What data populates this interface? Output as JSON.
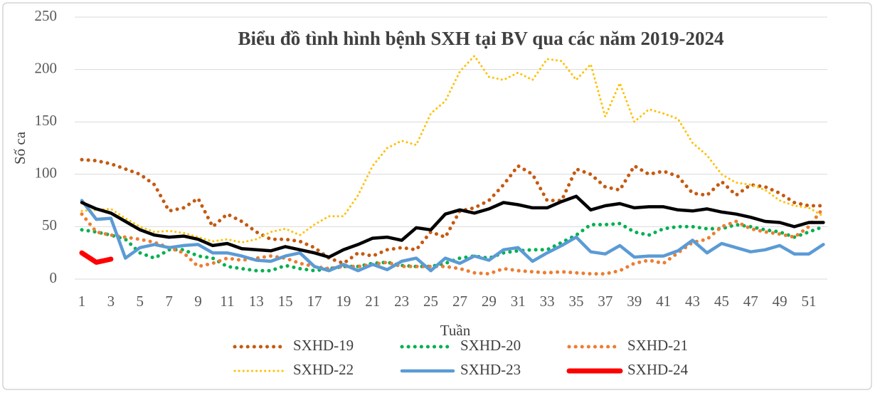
{
  "chart_data": {
    "type": "line",
    "title": "Biểu đồ tình hình bệnh SXH tại BV qua các năm 2019-2024",
    "x_label": "Tuần",
    "y_label": "Số ca",
    "categories": [
      1,
      null,
      3,
      null,
      5,
      null,
      7,
      null,
      9,
      null,
      11,
      null,
      13,
      null,
      15,
      null,
      17,
      null,
      19,
      null,
      21,
      null,
      23,
      null,
      25,
      null,
      27,
      null,
      29,
      null,
      31,
      null,
      33,
      null,
      35,
      null,
      37,
      null,
      39,
      null,
      41,
      null,
      43,
      null,
      45,
      null,
      47,
      null,
      49,
      null,
      51,
      null
    ],
    "ylim": [
      0,
      250
    ],
    "yticks": [
      0,
      50,
      100,
      150,
      200,
      250
    ],
    "grid": true,
    "legend": "bottom",
    "series": [
      {
        "name": "SXHD-19",
        "color": "#c55a11",
        "style": "dotted",
        "values": [
          114,
          113,
          110,
          105,
          100,
          90,
          65,
          68,
          77,
          50,
          62,
          55,
          45,
          38,
          38,
          36,
          30,
          20,
          15,
          25,
          22,
          28,
          30,
          28,
          45,
          40,
          65,
          68,
          75,
          90,
          108,
          100,
          75,
          75,
          105,
          100,
          88,
          85,
          108,
          100,
          103,
          98,
          82,
          80,
          93,
          80,
          90,
          88,
          82,
          73,
          70,
          70
        ]
      },
      {
        "name": "SXHD-20",
        "color": "#00b050",
        "style": "dotted",
        "values": [
          47,
          45,
          42,
          38,
          25,
          20,
          28,
          28,
          22,
          20,
          12,
          10,
          8,
          8,
          13,
          10,
          8,
          10,
          12,
          12,
          15,
          16,
          13,
          12,
          12,
          15,
          20,
          22,
          20,
          25,
          27,
          28,
          28,
          35,
          42,
          52,
          52,
          53,
          45,
          42,
          48,
          50,
          50,
          48,
          48,
          52,
          50,
          47,
          45,
          40,
          45,
          50
        ]
      },
      {
        "name": "SXHD-21",
        "color": "#ed7d31",
        "style": "dotted",
        "values": [
          62,
          45,
          42,
          40,
          38,
          35,
          30,
          25,
          12,
          15,
          20,
          18,
          20,
          22,
          20,
          15,
          12,
          10,
          12,
          12,
          14,
          16,
          12,
          12,
          12,
          12,
          10,
          6,
          5,
          10,
          8,
          7,
          6,
          7,
          6,
          5,
          5,
          8,
          15,
          18,
          15,
          25,
          35,
          38,
          50,
          55,
          48,
          45,
          43,
          40,
          50,
          68
        ]
      },
      {
        "name": "SXHD-22",
        "color": "#ffc000",
        "style": "dotted-thin",
        "values": [
          65,
          66,
          67,
          58,
          50,
          45,
          46,
          44,
          40,
          36,
          38,
          35,
          38,
          45,
          48,
          42,
          52,
          60,
          60,
          80,
          108,
          125,
          132,
          128,
          158,
          170,
          198,
          213,
          193,
          190,
          197,
          190,
          210,
          208,
          190,
          205,
          155,
          187,
          150,
          162,
          158,
          153,
          130,
          118,
          100,
          92,
          90,
          85,
          75,
          70,
          68,
          60
        ]
      },
      {
        "name": "SXHD-23",
        "color": "#5b9bd5",
        "style": "solid",
        "values": [
          75,
          57,
          58,
          20,
          30,
          33,
          30,
          32,
          33,
          25,
          25,
          22,
          18,
          17,
          22,
          25,
          12,
          8,
          14,
          8,
          14,
          9,
          17,
          20,
          8,
          20,
          15,
          22,
          18,
          28,
          30,
          17,
          25,
          32,
          40,
          26,
          24,
          32,
          21,
          22,
          22,
          27,
          37,
          25,
          34,
          30,
          26,
          28,
          32,
          24,
          24,
          33
        ]
      },
      {
        "name": "SXHD-24",
        "color": "#ff0000",
        "style": "solid-thick",
        "values": [
          25,
          16,
          19,
          null,
          null,
          null,
          null,
          null,
          null,
          null,
          null,
          null,
          null,
          null,
          null,
          null,
          null,
          null,
          null,
          null,
          null,
          null,
          null,
          null,
          null,
          null,
          null,
          null,
          null,
          null,
          null,
          null,
          null,
          null,
          null,
          null,
          null,
          null,
          null,
          null,
          null,
          null,
          null,
          null,
          null,
          null,
          null,
          null,
          null,
          null,
          null,
          null
        ]
      },
      {
        "color": "#000000",
        "style": "solid",
        "values": [
          73,
          67,
          63,
          55,
          47,
          42,
          40,
          41,
          38,
          32,
          34,
          29,
          28,
          27,
          31,
          28,
          25,
          21,
          28,
          33,
          39,
          40,
          37,
          49,
          47,
          62,
          66,
          63,
          67,
          73,
          71,
          68,
          68,
          74,
          79,
          66,
          70,
          72,
          68,
          69,
          69,
          66,
          65,
          67,
          64,
          62,
          59,
          55,
          54,
          50,
          54,
          54
        ]
      }
    ]
  }
}
